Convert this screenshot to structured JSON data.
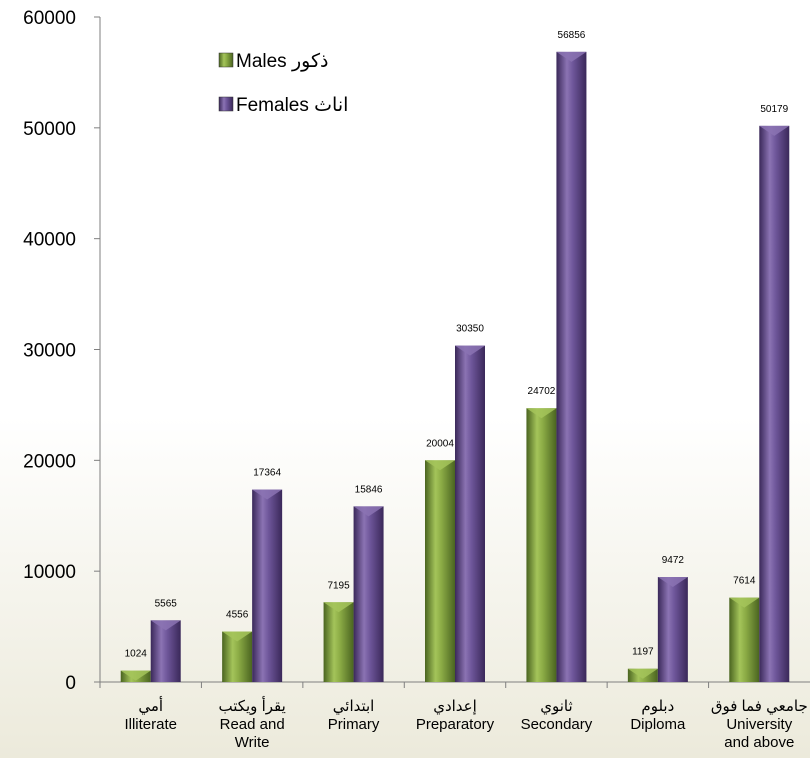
{
  "chart_data": {
    "type": "bar",
    "categories": [
      [
        "أمي",
        "Illiterate"
      ],
      [
        "يقرأ ويكتب",
        "Read and",
        "Write"
      ],
      [
        "ابتدائي",
        "Primary"
      ],
      [
        "إعدادي",
        "Preparatory"
      ],
      [
        "ثانوي",
        "Secondary"
      ],
      [
        "دبلوم",
        "Diploma"
      ],
      [
        "جامعي فما فوق",
        "University",
        "and above"
      ]
    ],
    "series": [
      {
        "name": "Males ذكور",
        "values": [
          1024,
          4556,
          7195,
          20004,
          24702,
          1197,
          7614
        ]
      },
      {
        "name": "Females اناث",
        "values": [
          5565,
          17364,
          15846,
          30350,
          56856,
          9472,
          50179
        ]
      }
    ],
    "ylim": [
      0,
      60000
    ],
    "yticks": [
      0,
      10000,
      20000,
      30000,
      40000,
      50000,
      60000
    ],
    "data_labels": true,
    "grid": false,
    "legend_position": "top-left",
    "colors": {
      "males": "#6f8f2f",
      "males_light": "#a4c45a",
      "males_dark": "#4a6420",
      "females": "#5b4380",
      "females_light": "#8b73b3",
      "females_dark": "#3a2859"
    }
  }
}
